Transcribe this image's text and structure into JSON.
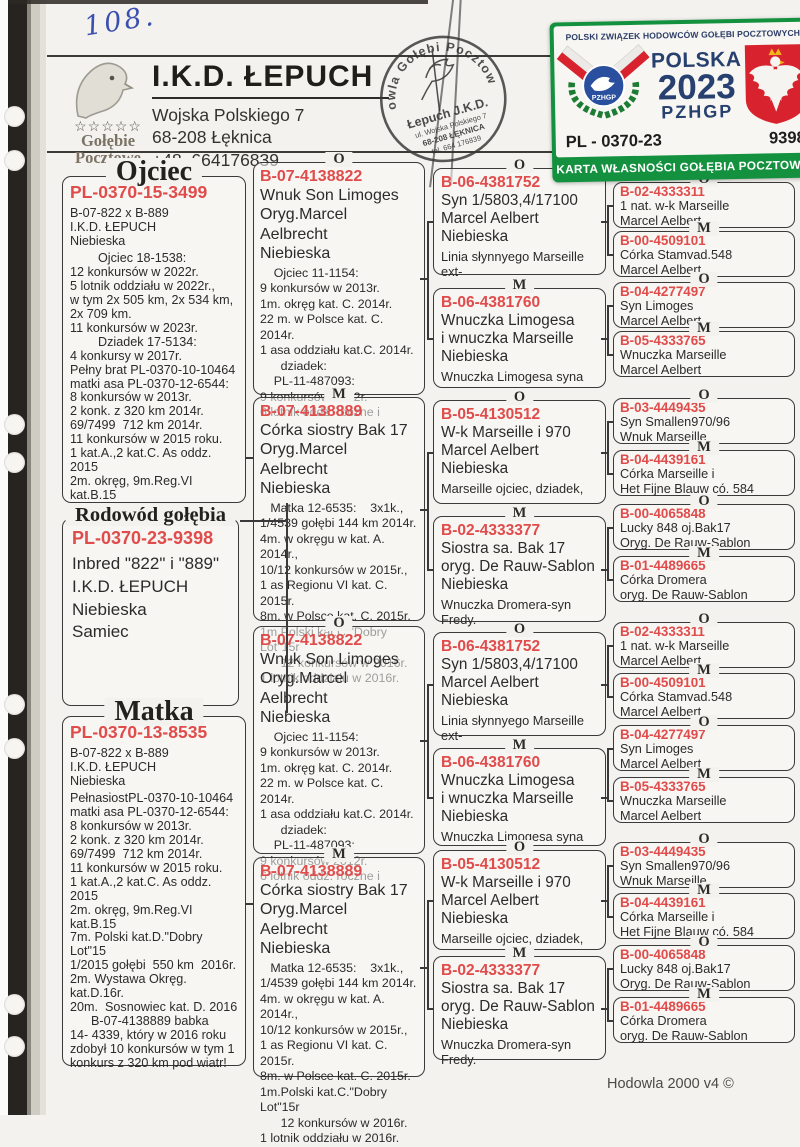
{
  "page": {
    "handwritten_number": "108.",
    "footer": "Hodowla 2000 v4 ©"
  },
  "header": {
    "club_logo": {
      "stars": "☆☆☆☆☆",
      "name": "Gołębie\nPocztowe"
    },
    "title": "I.K.D. ŁEPUCH",
    "address": "Wojska Polskiego 7\n68-208 Łęknica\n+48  664176839",
    "stamp": {
      "arc_text": "Hodowla Gołębi Pocztowych",
      "owner": "Łepuch J.K.D.",
      "address_line1": "ul. Wojska Polskiego 7",
      "address_line2": "68-208 ŁĘKNICA",
      "phone": "tel. 664 176839"
    }
  },
  "card": {
    "federation": "POLSKI ZWIĄZEK HODOWCÓW GOŁĘBI POCZTOWYCH",
    "emblem_text": "PZHGP",
    "country": "POLSKA",
    "year": "2023",
    "organization": "PZHGP",
    "district_code": "PL - 0370-23",
    "ring_number": "9398",
    "card_title": "KARTA WŁASNOŚCI GOŁĘBIA POCZTOWEGO",
    "colors": {
      "green": "#13913f",
      "navy": "#27406f",
      "flag_red": "#d8232e"
    }
  },
  "pedigree": {
    "ring_color": "#e04b4b",
    "father": {
      "title": "Ojciec",
      "ring": "PL-0370-15-3499",
      "lines": [
        "B-07-822 x B-889",
        "I.K.D. ŁEPUCH",
        "Niebieska"
      ],
      "details": [
        "        Ojciec 18-1538:",
        "12 konkursów w 2022r.",
        "5 lotnik oddziału w 2022r.,",
        "w tym 2x 505 km, 2x 534 km,",
        "2x 709 km.",
        "11 konkursów w 2023r.",
        "        Dziadek 17-5134:",
        "4 konkursy w 2017r.",
        "Pełny brat PL-0370-10-10464",
        "matki asa PL-0370-12-6544:",
        "8 konkursów w 2013r.",
        "2 konk. z 320 km 2014r.",
        "69/7499  712 km 2014r.",
        "11 konkursów w 2015 roku.",
        "1 kat.A.,2 kat.C. As oddz. 2015",
        "2m. okręg, 9m.Reg.VI kat.B.15"
      ]
    },
    "subject": {
      "title": "Rodowód gołębia",
      "ring": "PL-0370-23-9398",
      "lines": [
        "Inbred \"822\" i \"889\"",
        "I.K.D. ŁEPUCH",
        "Niebieska",
        "Samiec"
      ]
    },
    "mother": {
      "title": "Matka",
      "ring": "PL-0370-13-8535",
      "lines": [
        "B-07-822 x B-889",
        "I.K.D. ŁEPUCH",
        "Niebieska"
      ],
      "details": [
        "PełnasiostPL-0370-10-10464",
        "matki asa PL-0370-12-6544:",
        "8 konkursów w 2013r.",
        "2 konk. z 320 km 2014r.",
        "69/7499  712 km 2014r.",
        "11 konkursów w 2015 roku.",
        "1 kat.A.,2 kat.C. As oddz. 2015",
        "2m. okręg, 9m.Reg.VI kat.B.15",
        "7m. Polski kat.D.\"Dobry Lot\"15",
        "1/2015 gołębi  550 km  2016r.",
        "2m. Wystawa Okręg. kat.D.16r.",
        "20m.  Sosnowiec kat. D. 2016",
        "      B-07-4138889 babka",
        "14- 4339, który w 2016 roku",
        "zdobył 10 konkursów w tym 1",
        "konkurs z 320 km pod wiatr!"
      ]
    },
    "gen2": [
      {
        "sex_label": "O",
        "ring": "B-07-4138822",
        "lines": [
          "Wnuk Son Limoges",
          "Oryg.Marcel Aelbrecht",
          "Niebieska"
        ],
        "details": [
          "    Ojciec 11-1154:",
          "9 konkursów w 2013r.",
          "1m. okręg kat. C. 2014r.",
          "22 m. w Polsce kat. C. 2014r.",
          "1 asa oddziału kat.C. 2014r.",
          "      dziadek:",
          "    PL-11-487093:",
          "9 konkursów 2012r.",
          "6 lotnik oddz. roczne i"
        ]
      },
      {
        "sex_label": "M",
        "ring": "B-07-4138889",
        "lines": [
          "Córka siostry Bak 17",
          "Oryg.Marcel Aelbrecht",
          "Niebieska"
        ],
        "details": [
          "   Matka 12-6535:    3x1k.,",
          "1/4539 gołębi 144 km 2014r.",
          "4m. w okręgu w kat. A. 2014r.,",
          "10/12 konkursów w 2015r.,",
          "1 as Regionu VI kat. C. 2015r.",
          "8m. w Polsce kat. C. 2015r.",
          "1m.Polski kat.C.\"Dobry Lot\"15r",
          "      12 konkursów w 2016r.",
          "1 lotnik oddziału w 2016r."
        ]
      },
      {
        "sex_label": "O",
        "ring": "B-07-4138822",
        "lines": [
          "Wnuk Son Limoges",
          "Oryg.Marcel Aelbrecht",
          "Niebieska"
        ],
        "details": [
          "    Ojciec 11-1154:",
          "9 konkursów w 2013r.",
          "1m. okręg kat. C. 2014r.",
          "22 m. w Polsce kat. C. 2014r.",
          "1 asa oddziału kat.C. 2014r.",
          "      dziadek:",
          "    PL-11-487093:",
          "9 konkursów 2012r.",
          "6 lotnik oddz. roczne i"
        ]
      },
      {
        "sex_label": "M",
        "ring": "B-07-4138889",
        "lines": [
          "Córka siostry Bak 17",
          "Oryg.Marcel Aelbrecht",
          "Niebieska"
        ],
        "details": [
          "   Matka 12-6535:    3x1k.,",
          "1/4539 gołębi 144 km 2014r.",
          "4m. w okręgu w kat. A. 2014r.,",
          "10/12 konkursów w 2015r.,",
          "1 as Regionu VI kat. C. 2015r.",
          "8m. w Polsce kat. C. 2015r.",
          "1m.Polski kat.C.\"Dobry Lot\"15r",
          "      12 konkursów w 2016r.",
          "1 lotnik oddziału w 2016r."
        ]
      }
    ],
    "gen3": [
      {
        "sex_label": "O",
        "ring": "B-06-4381752",
        "lines": [
          "Syn 1/5803,4/17100",
          "Marcel Aelbert",
          "Niebieska"
        ],
        "note": "Linia słynnyego Marseille ext-"
      },
      {
        "sex_label": "M",
        "ring": "B-06-4381760",
        "lines": [
          "Wnuczka Limogesa",
          "i wnuczka Marseille",
          "Niebieska"
        ],
        "note": "Wnuczka Limogesa syna"
      },
      {
        "sex_label": "O",
        "ring": "B-05-4130512",
        "lines": [
          "W-k Marseille i 970",
          "Marcel Aelbert",
          "Niebieska"
        ],
        "note": "Marseille ojciec, dziadek,"
      },
      {
        "sex_label": "M",
        "ring": "B-02-4333377",
        "lines": [
          "Siostra sa. Bak 17",
          "oryg. De Rauw-Sablon",
          "Niebieska"
        ],
        "note": "Wnuczka Dromera-syn Fredy."
      },
      {
        "sex_label": "O",
        "ring": "B-06-4381752",
        "lines": [
          "Syn 1/5803,4/17100",
          "Marcel Aelbert",
          "Niebieska"
        ],
        "note": "Linia słynnyego Marseille ext-"
      },
      {
        "sex_label": "M",
        "ring": "B-06-4381760",
        "lines": [
          "Wnuczka Limogesa",
          "i wnuczka Marseille",
          "Niebieska"
        ],
        "note": "Wnuczka Limogesa syna"
      },
      {
        "sex_label": "O",
        "ring": "B-05-4130512",
        "lines": [
          "W-k Marseille i 970",
          "Marcel Aelbert",
          "Niebieska"
        ],
        "note": "Marseille ojciec, dziadek,"
      },
      {
        "sex_label": "M",
        "ring": "B-02-4333377",
        "lines": [
          "Siostra sa. Bak 17",
          "oryg. De Rauw-Sablon",
          "Niebieska"
        ],
        "note": "Wnuczka Dromera-syn Fredy."
      }
    ],
    "gen4": [
      {
        "sex_label": "O",
        "ring": "B-02-4333311",
        "lines": [
          "1 nat. w-k Marseille",
          "Marcel Aelbert"
        ]
      },
      {
        "sex_label": "M",
        "ring": "B-00-4509101",
        "lines": [
          "Córka Stamvad.548",
          "Marcel Aelbert"
        ]
      },
      {
        "sex_label": "O",
        "ring": "B-04-4277497",
        "lines": [
          "Syn Limoges",
          "Marcel Aelbert"
        ]
      },
      {
        "sex_label": "M",
        "ring": "B-05-4333765",
        "lines": [
          "Wnuczka Marseille",
          "Marcel Aelbert"
        ]
      },
      {
        "sex_label": "O",
        "ring": "B-03-4449435",
        "lines": [
          "Syn Smallen970/96",
          "Wnuk Marseille"
        ]
      },
      {
        "sex_label": "M",
        "ring": "B-04-4439161",
        "lines": [
          "Córka Marseille i",
          "Het Fijne Blauw có. 584"
        ]
      },
      {
        "sex_label": "O",
        "ring": "B-00-4065848",
        "lines": [
          "Lucky 848 oj.Bak17",
          "Oryg. De Rauw-Sablon"
        ]
      },
      {
        "sex_label": "M",
        "ring": "B-01-4489665",
        "lines": [
          "Córka Dromera",
          "oryg. De Rauw-Sablon"
        ]
      },
      {
        "sex_label": "O",
        "ring": "B-02-4333311",
        "lines": [
          "1 nat. w-k Marseille",
          "Marcel Aelbert"
        ]
      },
      {
        "sex_label": "M",
        "ring": "B-00-4509101",
        "lines": [
          "Córka Stamvad.548",
          "Marcel Aelbert"
        ]
      },
      {
        "sex_label": "O",
        "ring": "B-04-4277497",
        "lines": [
          "Syn Limoges",
          "Marcel Aelbert"
        ]
      },
      {
        "sex_label": "M",
        "ring": "B-05-4333765",
        "lines": [
          "Wnuczka Marseille",
          "Marcel Aelbert"
        ]
      },
      {
        "sex_label": "O",
        "ring": "B-03-4449435",
        "lines": [
          "Syn Smallen970/96",
          "Wnuk Marseille"
        ]
      },
      {
        "sex_label": "M",
        "ring": "B-04-4439161",
        "lines": [
          "Córka Marseille i",
          "Het Fijne Blauw có. 584"
        ]
      },
      {
        "sex_label": "O",
        "ring": "B-00-4065848",
        "lines": [
          "Lucky 848 oj.Bak17",
          "Oryg. De Rauw-Sablon"
        ]
      },
      {
        "sex_label": "M",
        "ring": "B-01-4489665",
        "lines": [
          "Córka Dromera",
          "oryg. De Rauw-Sablon"
        ]
      }
    ]
  }
}
